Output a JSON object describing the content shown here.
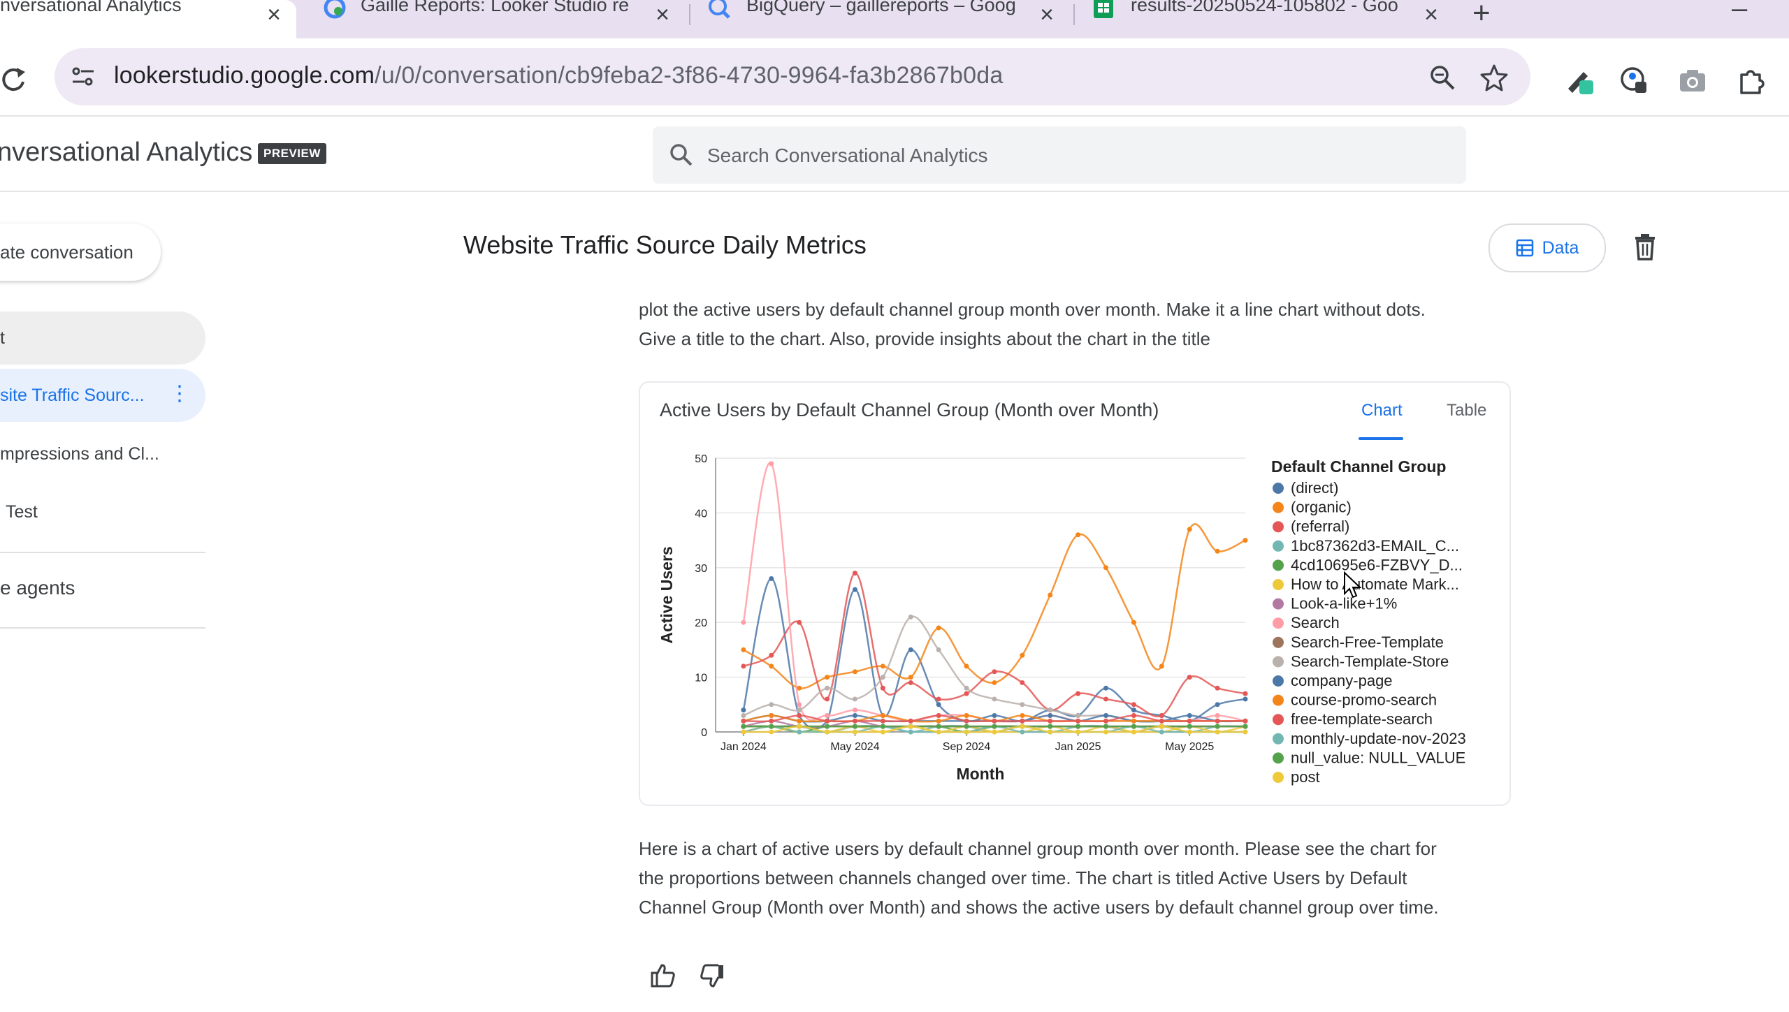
{
  "browser": {
    "tabs": [
      {
        "title": "nversational Analytics",
        "active": true,
        "favicon": "looker-studio-icon"
      },
      {
        "title": "Gaille Reports: Looker Studio re",
        "active": false,
        "favicon": "looker-studio-icon"
      },
      {
        "title": "BigQuery – gaillereports – Goog",
        "active": false,
        "favicon": "bigquery-icon"
      },
      {
        "title": "results-20250524-105802 - Goo",
        "active": false,
        "favicon": "sheets-icon"
      }
    ],
    "url_host": "lookerstudio.google.com",
    "url_path": "/u/0/conversation/cb9feba2-3f86-4730-9964-fa3b2867b0da"
  },
  "app": {
    "title": "nversational Analytics",
    "badge": "PREVIEW",
    "search_placeholder": "Search Conversational Analytics"
  },
  "sidebar": {
    "create_label": "ate conversation",
    "items": [
      {
        "label": "t"
      },
      {
        "label": "site Traffic Sourc..."
      },
      {
        "label": "mpressions and Cl..."
      },
      {
        "label": "Test"
      }
    ],
    "agents_label": "e agents"
  },
  "main": {
    "conversation_title": "Website Traffic Source Daily Metrics",
    "data_button": "Data",
    "prompt_line1": "plot the active users by default channel group month over month. Make it a line chart without dots.",
    "prompt_line2": "Give a title to the chart. Also, provide insights about the chart in the title",
    "chart_tab_chart": "Chart",
    "chart_tab_table": "Table",
    "response_line1": "Here is a chart of active users by default channel group month over month. Please see the chart for",
    "response_line2": "the proportions between channels changed over time. The chart is titled Active Users by Default",
    "response_line3": "Channel Group (Month over Month) and shows the active users by default channel group over time."
  },
  "chart_data": {
    "type": "line",
    "title": "Active Users by Default Channel Group (Month over Month)",
    "xlabel": "Month",
    "ylabel": "Active Users",
    "ylim": [
      0,
      50
    ],
    "yticks": [
      0,
      10,
      20,
      30,
      40,
      50
    ],
    "x_tick_labels": [
      "Jan 2024",
      "May 2024",
      "Sep 2024",
      "Jan 2025",
      "May 2025"
    ],
    "x_tick_positions": [
      1,
      5,
      9,
      13,
      17
    ],
    "x_range": [
      0,
      19
    ],
    "grid": true,
    "legend_title": "Default Channel Group",
    "legend_position": "right",
    "series": [
      {
        "name": "(direct)",
        "color": "#4c78a8",
        "values": [
          4,
          28,
          3,
          2,
          26,
          3,
          15,
          5,
          2,
          3,
          2,
          4,
          3,
          8,
          4,
          3,
          2,
          5,
          6
        ]
      },
      {
        "name": "(organic)",
        "color": "#f58518",
        "values": [
          15,
          12,
          8,
          10,
          11,
          12,
          10,
          19,
          12,
          9,
          14,
          25,
          36,
          30,
          20,
          12,
          37,
          33,
          35
        ]
      },
      {
        "name": "(referral)",
        "color": "#e45756",
        "values": [
          12,
          14,
          20,
          6,
          29,
          8,
          9,
          6,
          7,
          11,
          9,
          4,
          7,
          6,
          5,
          3,
          10,
          8,
          7
        ]
      },
      {
        "name": "1bc87362d3-EMAIL_C...",
        "color": "#72b7b2",
        "values": [
          1,
          1,
          1,
          0,
          1,
          1,
          0,
          1,
          1,
          0,
          1,
          0,
          1,
          1,
          0,
          1,
          0,
          1,
          1
        ]
      },
      {
        "name": "4cd10695e6-FZBVY_D...",
        "color": "#54a24b",
        "values": [
          1,
          1,
          0,
          1,
          1,
          1,
          1,
          1,
          0,
          1,
          1,
          1,
          1,
          1,
          1,
          1,
          1,
          1,
          1
        ]
      },
      {
        "name": "How to Automate Mark...",
        "color": "#eeca3b",
        "values": [
          0,
          1,
          0,
          0,
          1,
          0,
          1,
          0,
          1,
          0,
          0,
          1,
          0,
          1,
          0,
          0,
          1,
          0,
          1
        ]
      },
      {
        "name": "Look-a-like+1%",
        "color": "#b279a2",
        "values": [
          1,
          2,
          1,
          1,
          2,
          1,
          1,
          1,
          1,
          1,
          1,
          1,
          1,
          1,
          1,
          1,
          1,
          1,
          1
        ]
      },
      {
        "name": "Search",
        "color": "#ff9da6",
        "values": [
          20,
          49,
          5,
          3,
          4,
          3,
          2,
          3,
          3,
          2,
          2,
          3,
          2,
          2,
          2,
          2,
          2,
          3,
          2
        ]
      },
      {
        "name": "Search-Free-Template",
        "color": "#9d755d",
        "values": [
          1,
          1,
          1,
          1,
          1,
          1,
          1,
          1,
          1,
          1,
          1,
          1,
          1,
          1,
          1,
          1,
          1,
          1,
          1
        ]
      },
      {
        "name": "Search-Template-Store",
        "color": "#bab0ac",
        "values": [
          3,
          5,
          4,
          8,
          6,
          10,
          21,
          15,
          8,
          6,
          5,
          4,
          3,
          3,
          2,
          2,
          2,
          2,
          2
        ]
      },
      {
        "name": "company-page",
        "color": "#4c78a8",
        "values": [
          2,
          3,
          2,
          2,
          3,
          2,
          2,
          2,
          2,
          2,
          2,
          3,
          2,
          3,
          2,
          2,
          3,
          2,
          2
        ]
      },
      {
        "name": "course-promo-search",
        "color": "#f58518",
        "values": [
          2,
          3,
          2,
          2,
          2,
          3,
          2,
          2,
          3,
          2,
          3,
          2,
          2,
          2,
          2,
          2,
          2,
          2,
          2
        ]
      },
      {
        "name": "free-template-search",
        "color": "#e45756",
        "values": [
          2,
          2,
          3,
          2,
          2,
          2,
          2,
          3,
          2,
          2,
          2,
          2,
          2,
          2,
          3,
          2,
          2,
          2,
          2
        ]
      },
      {
        "name": "monthly-update-nov-2023",
        "color": "#72b7b2",
        "values": [
          0,
          1,
          0,
          0,
          0,
          1,
          0,
          0,
          0,
          1,
          0,
          0,
          0,
          0,
          1,
          0,
          0,
          0,
          0
        ]
      },
      {
        "name": "null_value: NULL_VALUE",
        "color": "#54a24b",
        "values": [
          1,
          1,
          1,
          1,
          1,
          1,
          1,
          1,
          1,
          1,
          1,
          1,
          1,
          1,
          1,
          1,
          1,
          1,
          1
        ]
      },
      {
        "name": "post",
        "color": "#eeca3b",
        "values": [
          0,
          0,
          1,
          0,
          0,
          0,
          1,
          0,
          0,
          0,
          1,
          0,
          0,
          0,
          0,
          1,
          0,
          0,
          0
        ]
      }
    ]
  }
}
